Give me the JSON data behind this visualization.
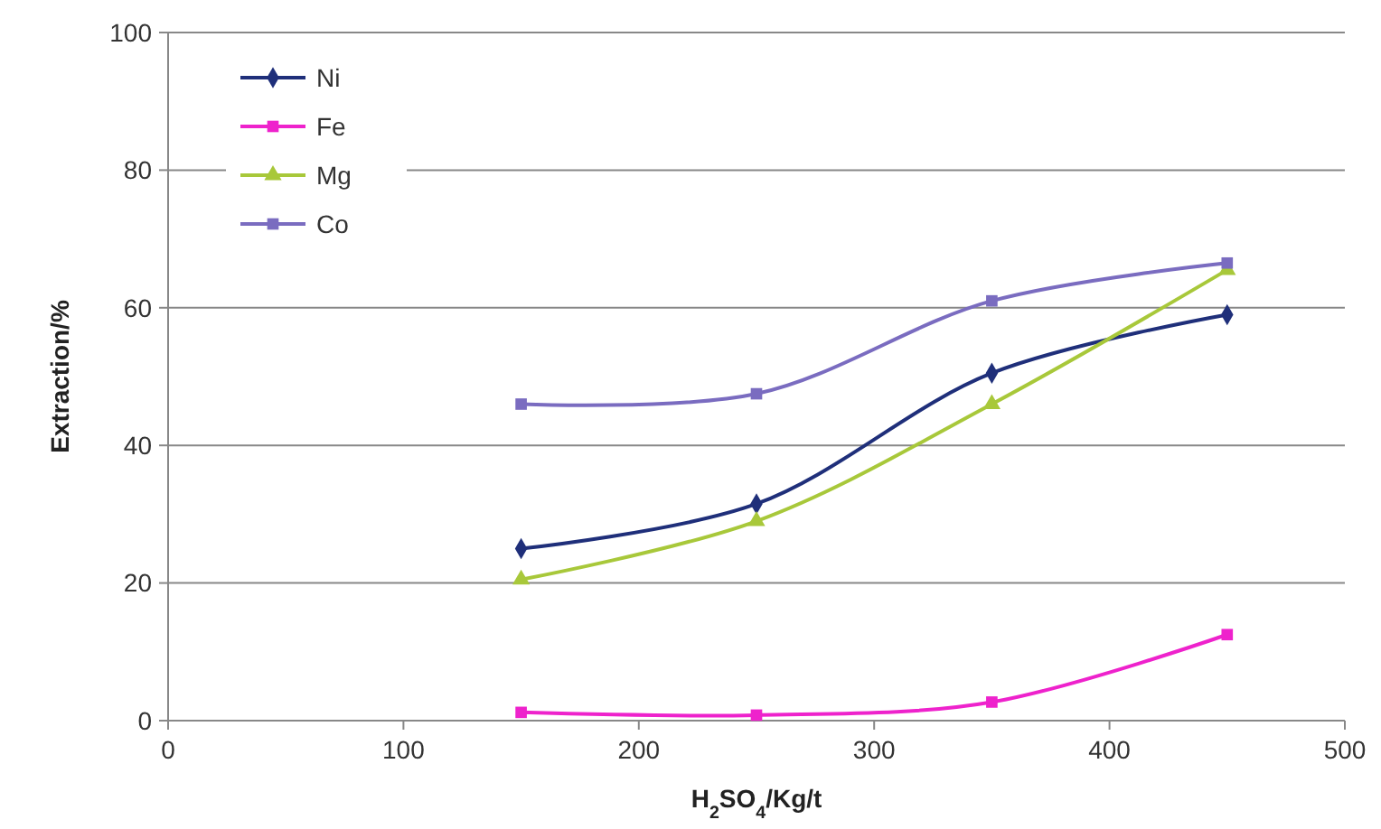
{
  "chart_data": {
    "type": "line",
    "xlabel": "H$_{2}$SO$_{4}$/Kg/t",
    "ylabel": "Extraction/%",
    "x": [
      150,
      250,
      350,
      450
    ],
    "xlim": [
      0,
      500
    ],
    "xticks": [
      0,
      100,
      200,
      300,
      400,
      500
    ],
    "ylim": [
      0,
      100
    ],
    "yticks": [
      0,
      20,
      40,
      60,
      80,
      100
    ],
    "grid": "y",
    "legend": "top left",
    "series": [
      {
        "name": "Ni",
        "color": "#1f2f7a",
        "marker": "diamond",
        "values": [
          25,
          31.5,
          50.5,
          59
        ]
      },
      {
        "name": "Fe",
        "color": "#ee22cc",
        "marker": "square",
        "values": [
          1.2,
          0.8,
          2.7,
          12.5
        ]
      },
      {
        "name": "Mg",
        "color": "#a8c83a",
        "marker": "triangle",
        "values": [
          20.5,
          29,
          46,
          65.5
        ]
      },
      {
        "name": "Co",
        "color": "#7a6cc0",
        "marker": "square",
        "values": [
          46,
          47.5,
          61,
          66.5
        ]
      }
    ]
  }
}
